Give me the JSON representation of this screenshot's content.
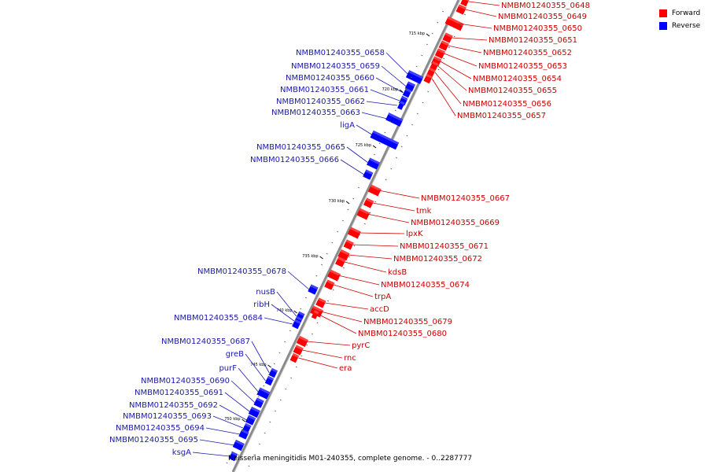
{
  "legend": {
    "forward_label": "Forward",
    "reverse_label": "Reverse",
    "forward_color": "#ff0000",
    "reverse_color": "#0000ff"
  },
  "caption": "Neisseria meningitidis M01-240355, complete genome. - 0..2287777",
  "ticks": [
    "715 kbp",
    "720 kbp",
    "725 kbp",
    "730 kbp",
    "735 kbp",
    "740 kbp",
    "745 kbp",
    "750 kbp"
  ],
  "forward_genes": [
    "NMBM01240355_0648",
    "NMBM01240355_0649",
    "NMBM01240355_0650",
    "NMBM01240355_0651",
    "NMBM01240355_0652",
    "NMBM01240355_0653",
    "NMBM01240355_0654",
    "NMBM01240355_0655",
    "NMBM01240355_0656",
    "NMBM01240355_0657",
    "NMBM01240355_0667",
    "tmk",
    "NMBM01240355_0669",
    "lpxK",
    "NMBM01240355_0671",
    "NMBM01240355_0672",
    "kdsB",
    "NMBM01240355_0674",
    "trpA",
    "accD",
    "NMBM01240355_0679",
    "NMBM01240355_0680",
    "pyrC",
    "rnc",
    "era"
  ],
  "reverse_genes": [
    "NMBM01240355_0658",
    "NMBM01240355_0659",
    "NMBM01240355_0660",
    "NMBM01240355_0661",
    "NMBM01240355_0662",
    "NMBM01240355_0663",
    "ligA",
    "NMBM01240355_0665",
    "NMBM01240355_0666",
    "NMBM01240355_0678",
    "nusB",
    "ribH",
    "NMBM01240355_0684",
    "NMBM01240355_0687",
    "greB",
    "purF",
    "NMBM01240355_0690",
    "NMBM01240355_0691",
    "NMBM01240355_0692",
    "NMBM01240355_0693",
    "NMBM01240355_0694",
    "NMBM01240355_0695",
    "ksgA"
  ]
}
